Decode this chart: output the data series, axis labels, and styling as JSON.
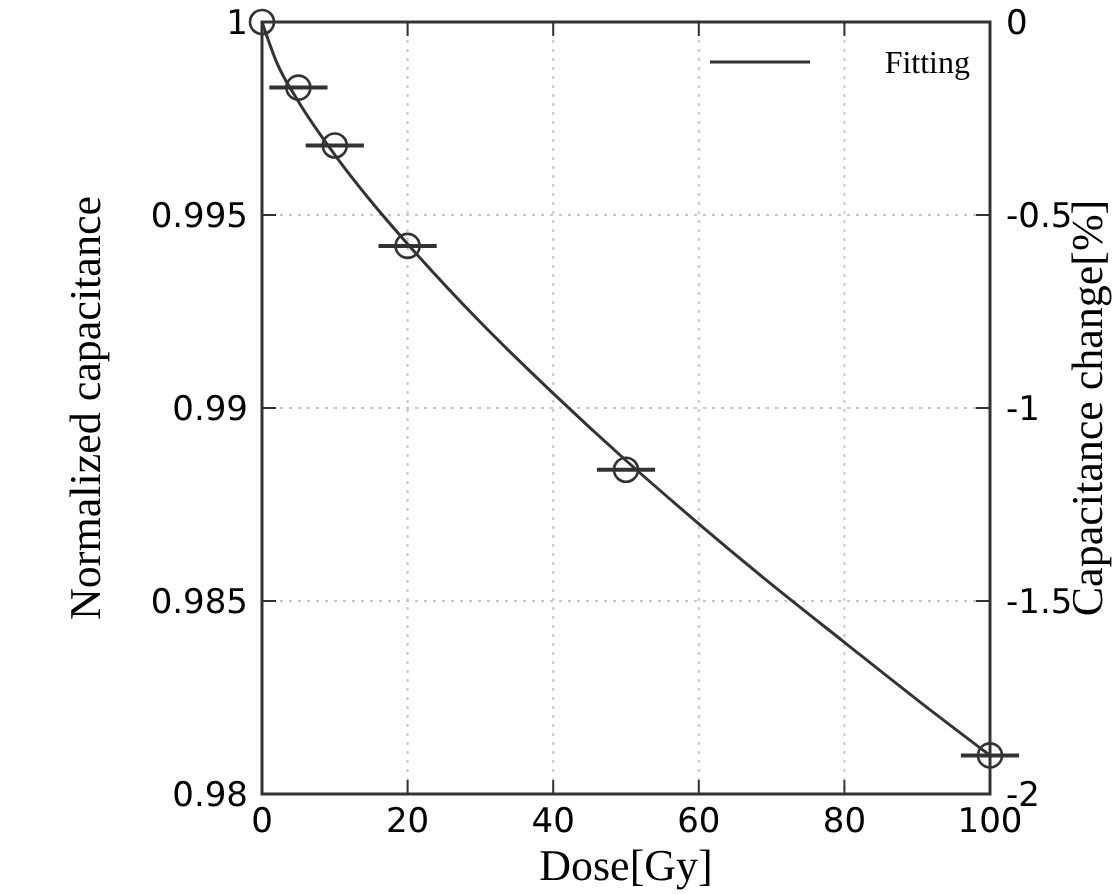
{
  "chart_data": {
    "type": "scatter",
    "xlabel": "Dose[Gy]",
    "ylabel": "Normalized capacitance",
    "y2label": "Capacitance change[%]",
    "xlim": [
      0,
      100
    ],
    "xticks": [
      0,
      20,
      40,
      60,
      80,
      100
    ],
    "ylim": [
      0.98,
      1
    ],
    "yticks": [
      0.98,
      0.985,
      0.99,
      0.995,
      1
    ],
    "y2lim": [
      -2,
      0
    ],
    "y2ticks": [
      -2,
      -1.5,
      -1,
      -0.5,
      0
    ],
    "grid": true,
    "legend": "top right",
    "series": [
      {
        "marker": "circle",
        "color": "#333333",
        "x": [
          0,
          5,
          10,
          20,
          50,
          100
        ],
        "values": [
          1,
          0.9983,
          0.9968,
          0.9942,
          0.9884,
          0.981
        ],
        "xerrors": [
          null,
          4,
          4,
          4,
          4,
          4
        ]
      },
      {
        "type": "line",
        "name": "Fitting",
        "color": "#333333",
        "line_style": "solid",
        "marker": "none",
        "x": [
          0,
          2,
          5,
          10,
          15,
          20,
          30,
          40,
          50,
          60,
          70,
          80,
          90,
          100
        ],
        "values": [
          1,
          0.99896,
          0.99794,
          0.99656,
          0.99535,
          0.99425,
          0.99222,
          0.99038,
          0.98864,
          0.987,
          0.98543,
          0.98393,
          0.98244,
          0.981
        ]
      }
    ]
  }
}
